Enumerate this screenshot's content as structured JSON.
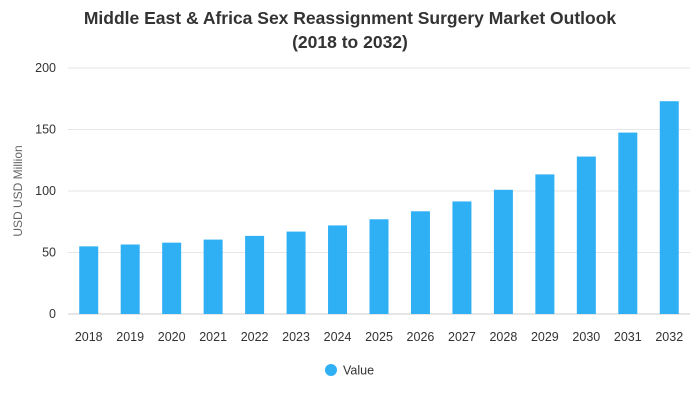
{
  "chart_data": {
    "type": "bar",
    "title_line1": "Middle East & Africa Sex Reassignment Surgery Market Outlook",
    "title_line2": "(2018 to 2032)",
    "xlabel": "",
    "ylabel": "USD USD Million",
    "ylim": [
      0,
      200
    ],
    "yticks": [
      0,
      50,
      100,
      150,
      200
    ],
    "grid": true,
    "legend_position": "bottom",
    "categories": [
      "2018",
      "2019",
      "2020",
      "2021",
      "2022",
      "2023",
      "2024",
      "2025",
      "2026",
      "2027",
      "2028",
      "2029",
      "2030",
      "2031",
      "2032"
    ],
    "series": [
      {
        "name": "Value",
        "color": "#2fb0f5",
        "values": [
          55,
          56.5,
          58,
          60.5,
          63.5,
          67,
          72,
          77,
          83.5,
          91.5,
          101,
          113.5,
          128,
          147.5,
          173
        ]
      }
    ]
  }
}
